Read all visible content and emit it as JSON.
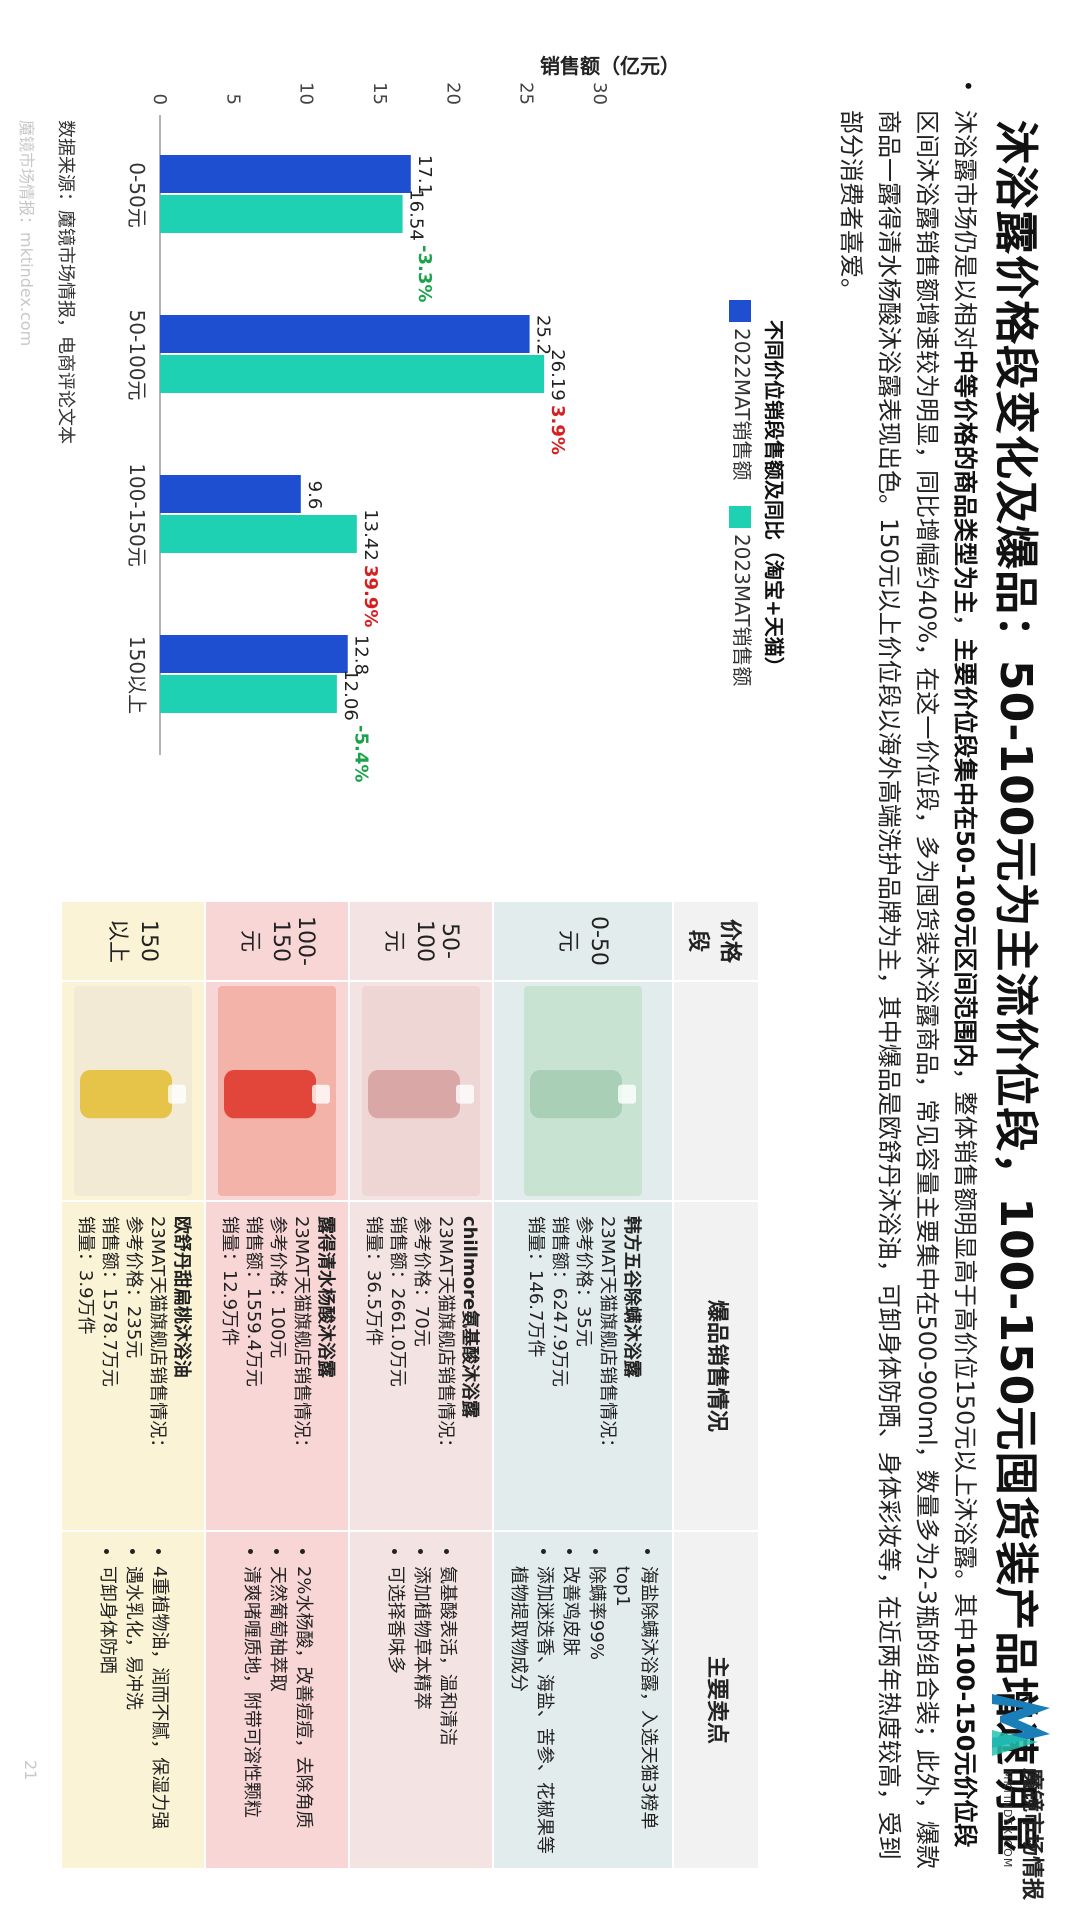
{
  "title": "沐浴露价格段变化及爆品：50-100元为主流价位段，100-150元囤货装产品增速明显",
  "logo": {
    "name": "魔镜市场情报",
    "sub": "MKTINDEX.COM"
  },
  "summary": {
    "p1": "沐浴露市场仍是以相对",
    "b1": "中等价格的商品类型为主",
    "p2": "，",
    "b2": "主要价位段集中在50-100元区间范围内",
    "p3": "，整体销售额明显高于高价位150元以上沐浴露。其中",
    "b3": "100-150元价位段",
    "p4": "区间沐浴露销售额增速较为明显，同比增幅约40%，在这一价位段，多为囤货装沐浴露商品，常见容量主要集中在500-900ml，数量多为2-3瓶的组合装；此外，爆款商品一露得清水杨酸沐浴露表现出色。150元以上价位段以海外高端洗护品牌为主，其中爆品是欧舒丹沐浴油，可卸身体防晒、身体彩妆等，在近两年热度较高，受到部分消费者喜爱。"
  },
  "chart_data": {
    "type": "bar",
    "title": "不同价位销段售额及同比（淘宝+天猫）",
    "ylabel": "销售额（亿元）",
    "ylim": [
      0,
      30
    ],
    "yticks": [
      0,
      5,
      10,
      15,
      20,
      25,
      30
    ],
    "categories": [
      "0-50元",
      "50-100元",
      "100-150元",
      "150以上"
    ],
    "series": [
      {
        "name": "2022MAT销售额",
        "color": "#1f4fd1",
        "values": [
          17.1,
          25.2,
          9.6,
          12.8
        ]
      },
      {
        "name": "2023MAT销售额",
        "color": "#1fd1b3",
        "values": [
          16.54,
          26.19,
          13.42,
          12.06
        ]
      }
    ],
    "growth": [
      "-3.3%",
      "3.9%",
      "39.9%",
      "-5.4%"
    ],
    "growth_colors": [
      "#1aa34a",
      "#d62020",
      "#d62020",
      "#1aa34a"
    ]
  },
  "source": "数据来源：魔镜市场情报，电商评论文本",
  "watermark": "魔镜市场情报：mktindex.com",
  "page_number": "21",
  "table": {
    "headers": [
      "价格段",
      "爆品销售情况",
      "主要卖点"
    ],
    "rows": [
      {
        "price": "0-50元",
        "product": "韩方五谷除螨沐浴露",
        "sales": [
          "23MAT天猫旗舰店销售情况：",
          "参考价格：35元",
          "销售额：6247.9万元",
          "销量：146.7万件"
        ],
        "points": [
          "海盐除螨沐浴露，入选天猫3榜单top1",
          "除螨率99%",
          "改善鸡皮肤",
          "添加迷迭香、海盐、苦参、花椒果等植物提取物成分"
        ],
        "img": {
          "bg": "#c9e3d3",
          "bottle": "#a9cfb7"
        }
      },
      {
        "price": "50-100元",
        "product": "chillmore氨基酸沐浴露",
        "sales": [
          "23MAT天猫旗舰店销售情况：",
          "参考价格：70元",
          "销售额：2661.0万元",
          "销量：36.5万件"
        ],
        "points": [
          "氨基酸表活，温和清洁",
          "添加植物草本精萃",
          "可选择香味多"
        ],
        "img": {
          "bg": "#eed6d4",
          "bottle": "#d9a7a6"
        }
      },
      {
        "price": "100-150元",
        "product": "露得清水杨酸沐浴露",
        "sales": [
          "23MAT天猫旗舰店销售情况：",
          "参考价格：100元",
          "销售额：1559.4万元",
          "销量：12.9万件"
        ],
        "points": [
          "2%水杨酸，改善痘痘，去除角质",
          "天然葡萄柚萃取",
          "清爽啫喱质地，附带可溶性颗粒"
        ],
        "img": {
          "bg": "#f4b3a8",
          "bottle": "#e2453a"
        }
      },
      {
        "price": "150以上",
        "product": "欧舒丹甜扁桃沐浴油",
        "sales": [
          "23MAT天猫旗舰店销售情况：",
          "参考价格：235元",
          "销售额：1578.7万元",
          "销量：3.9万件"
        ],
        "points": [
          "4重植物油，润而不腻，保湿力强",
          "遇水乳化，易冲洗",
          "可卸身体防晒"
        ],
        "img": {
          "bg": "#f3ead6",
          "bottle": "#e6c44a"
        }
      }
    ]
  }
}
